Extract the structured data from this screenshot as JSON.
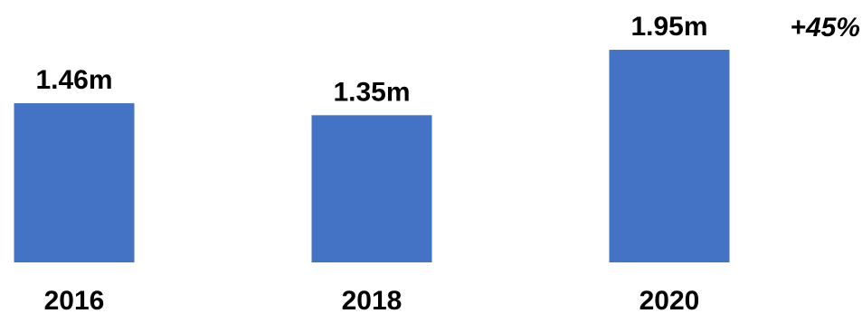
{
  "chart_data": {
    "type": "bar",
    "categories": [
      "2016",
      "2018",
      "2020"
    ],
    "values": [
      1.46,
      1.35,
      1.95
    ],
    "data_labels": [
      "1.46m",
      "1.35m",
      "1.95m"
    ],
    "annotation": "+45%",
    "title": "",
    "xlabel": "",
    "ylabel": "",
    "ylim": [
      0,
      2.0
    ],
    "grid": false,
    "legend": "none"
  },
  "colors": {
    "bar": "#4472C4",
    "text": "#000000",
    "background": "#FFFFFF"
  }
}
